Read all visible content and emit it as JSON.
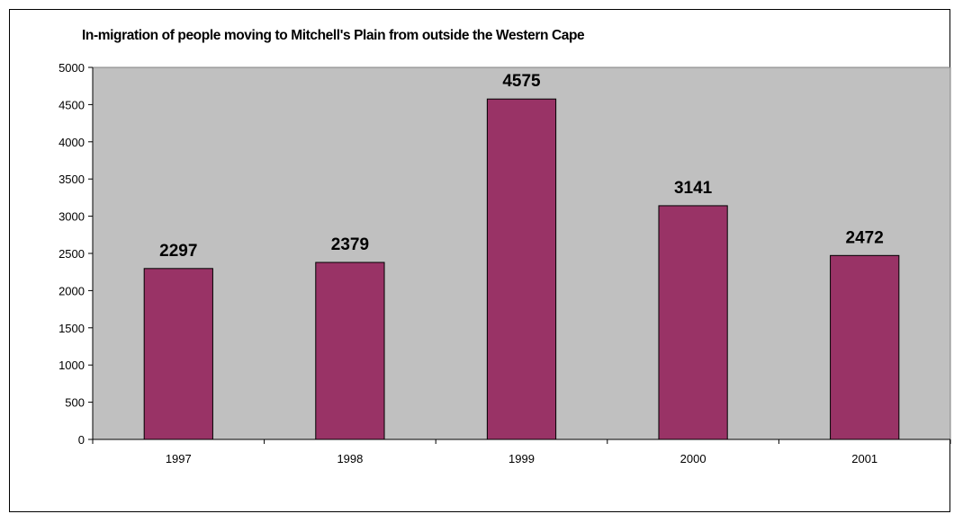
{
  "chart_data": {
    "type": "bar",
    "title": "In-migration of people moving to Mitchell's Plain from outside the Western Cape",
    "xlabel": "",
    "ylabel": "",
    "categories": [
      "1997",
      "1998",
      "1999",
      "2000",
      "2001"
    ],
    "values": [
      2297,
      2379,
      4575,
      3141,
      2472
    ],
    "data_labels": [
      "2297",
      "2379",
      "4575",
      "3141",
      "2472"
    ],
    "ylim": [
      0,
      5000
    ],
    "yticks": [
      "0",
      "500",
      "1000",
      "1500",
      "2000",
      "2500",
      "3000",
      "3500",
      "4000",
      "4500",
      "5000"
    ],
    "grid": false,
    "legend": "none",
    "colors": {
      "bar": "#993366",
      "plot_background": "#c0c0c0",
      "page_background": "#ffffff"
    }
  }
}
